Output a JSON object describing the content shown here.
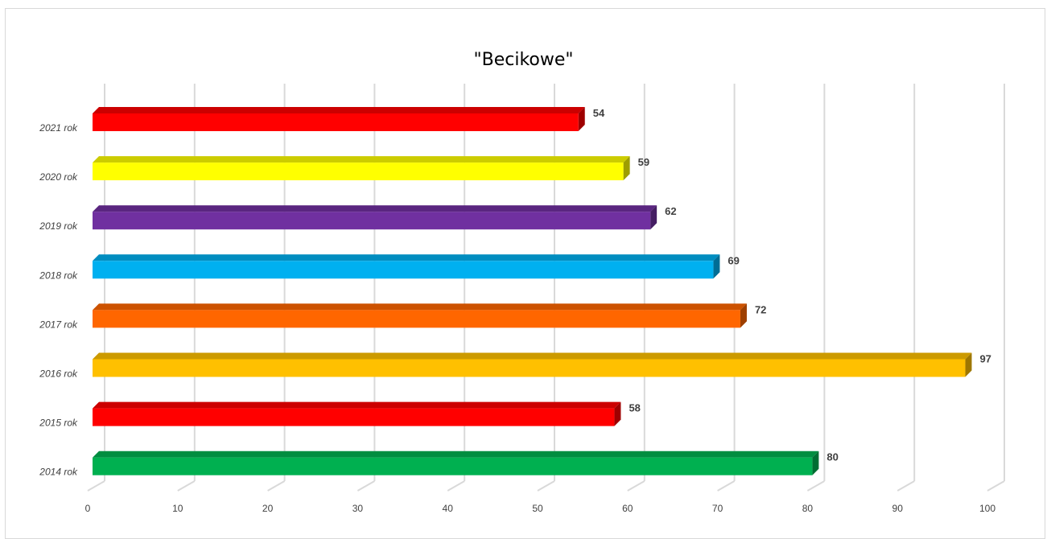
{
  "chart_data": {
    "type": "bar",
    "orientation": "horizontal",
    "title": "\"Becikowe\"",
    "xlabel": "",
    "ylabel": "",
    "categories": [
      "2021 rok",
      "2020 rok",
      "2019 rok",
      "2018 rok",
      "2017 rok",
      "2016 rok",
      "2015 rok",
      "2014 rok"
    ],
    "values": [
      54,
      59,
      62,
      69,
      72,
      97,
      58,
      80
    ],
    "colors": [
      "#ff0000",
      "#ffff00",
      "#7030a0",
      "#00b0f0",
      "#ff6600",
      "#ffc000",
      "#ff0000",
      "#00b050"
    ],
    "xlim": [
      0,
      100
    ],
    "x_ticks": [
      0,
      10,
      20,
      30,
      40,
      50,
      60,
      70,
      80,
      90,
      100
    ],
    "grid": true,
    "legend": "none",
    "style": "3d"
  }
}
